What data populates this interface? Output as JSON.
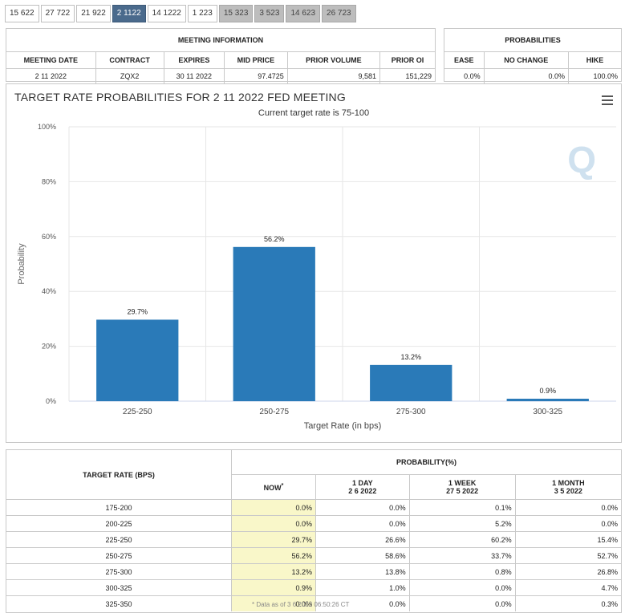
{
  "tabs": [
    {
      "label": "15 622",
      "state": "normal"
    },
    {
      "label": "27 722",
      "state": "normal"
    },
    {
      "label": "21 922",
      "state": "normal"
    },
    {
      "label": "2 1122",
      "state": "active"
    },
    {
      "label": "14 1222",
      "state": "normal"
    },
    {
      "label": "1 223",
      "state": "normal"
    },
    {
      "label": "15 323",
      "state": "disabled"
    },
    {
      "label": "3 523",
      "state": "disabled"
    },
    {
      "label": "14 623",
      "state": "disabled"
    },
    {
      "label": "26 723",
      "state": "disabled"
    }
  ],
  "meeting": {
    "heading": "MEETING INFORMATION",
    "columns": [
      "MEETING DATE",
      "CONTRACT",
      "EXPIRES",
      "MID PRICE",
      "PRIOR VOLUME",
      "PRIOR OI"
    ],
    "row": [
      "2 11 2022",
      "ZQX2",
      "30 11 2022",
      "97.4725",
      "9,581",
      "151,229"
    ]
  },
  "probabilities": {
    "heading": "PROBABILITIES",
    "columns": [
      "EASE",
      "NO CHANGE",
      "HIKE"
    ],
    "row": [
      "0.0%",
      "0.0%",
      "100.0%"
    ]
  },
  "chart": {
    "title": "TARGET RATE PROBABILITIES FOR 2 11 2022 FED MEETING",
    "subtitle": "Current target rate is 75-100",
    "watermark": "Q",
    "bar_color": "#2a7ab8"
  },
  "chart_data": {
    "type": "bar",
    "categories": [
      "225-250",
      "250-275",
      "275-300",
      "300-325"
    ],
    "values": [
      29.7,
      56.2,
      13.2,
      0.9
    ],
    "data_labels": [
      "29.7%",
      "56.2%",
      "13.2%",
      "0.9%"
    ],
    "xlabel": "Target Rate (in bps)",
    "ylabel": "Probability",
    "ylim": [
      0,
      100
    ],
    "yticks": [
      "0%",
      "20%",
      "40%",
      "60%",
      "80%",
      "100%"
    ],
    "grid": true
  },
  "prob_table": {
    "row_header": "TARGET RATE (BPS)",
    "group_header": "PROBABILITY(%)",
    "cols": [
      {
        "label": "NOW",
        "sup": "*",
        "date": ""
      },
      {
        "label": "1 DAY",
        "sup": "",
        "date": "2 6 2022"
      },
      {
        "label": "1 WEEK",
        "sup": "",
        "date": "27 5 2022"
      },
      {
        "label": "1 MONTH",
        "sup": "",
        "date": "3 5 2022"
      }
    ],
    "rows": [
      {
        "rate": "175-200",
        "vals": [
          "0.0%",
          "0.0%",
          "0.1%",
          "0.0%"
        ]
      },
      {
        "rate": "200-225",
        "vals": [
          "0.0%",
          "0.0%",
          "5.2%",
          "0.0%"
        ]
      },
      {
        "rate": "225-250",
        "vals": [
          "29.7%",
          "26.6%",
          "60.2%",
          "15.4%"
        ]
      },
      {
        "rate": "250-275",
        "vals": [
          "56.2%",
          "58.6%",
          "33.7%",
          "52.7%"
        ]
      },
      {
        "rate": "275-300",
        "vals": [
          "13.2%",
          "13.8%",
          "0.8%",
          "26.8%"
        ]
      },
      {
        "rate": "300-325",
        "vals": [
          "0.9%",
          "1.0%",
          "0.0%",
          "4.7%"
        ]
      },
      {
        "rate": "325-350",
        "vals": [
          "0.0%",
          "0.0%",
          "0.0%",
          "0.3%"
        ]
      }
    ],
    "footnote": "* Data as of 3 6 2022 06:50:26 CT"
  }
}
